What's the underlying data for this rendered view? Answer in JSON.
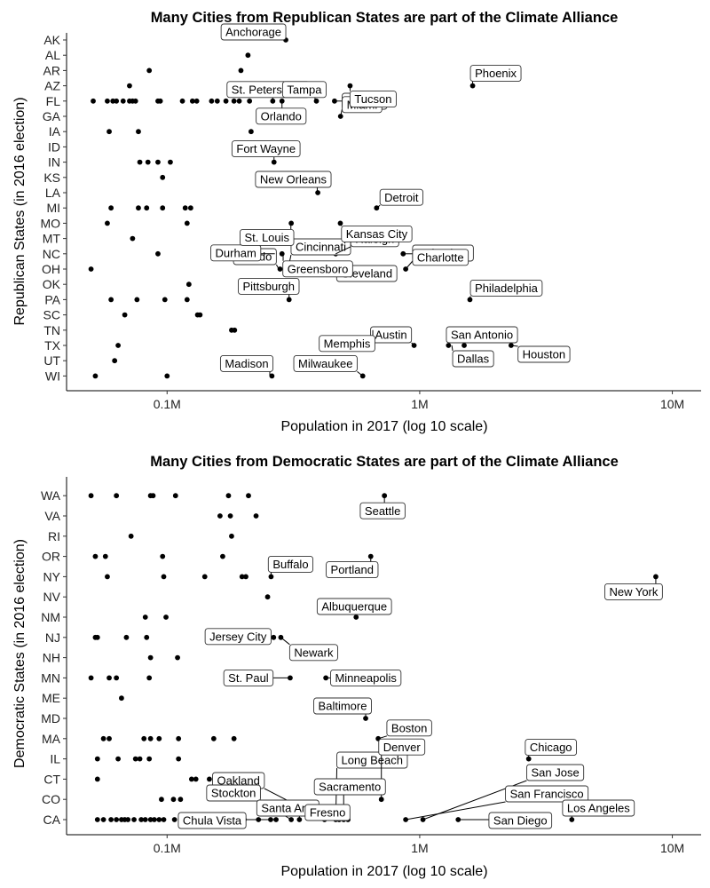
{
  "chart_data": [
    {
      "type": "scatter",
      "title": "Many Cities from Republican States are part of the Climate Alliance",
      "xlabel": "Population in 2017 (log 10 scale)",
      "ylabel": "Republican States (in 2016 election)",
      "x_scale": "log10",
      "x_ticks": [
        {
          "value": 100000,
          "label": "0.1M"
        },
        {
          "value": 1000000,
          "label": "1M"
        },
        {
          "value": 10000000,
          "label": "10M"
        }
      ],
      "grid": false,
      "categories": [
        "AK",
        "AL",
        "AR",
        "AZ",
        "FL",
        "GA",
        "IA",
        "ID",
        "IN",
        "KS",
        "LA",
        "MI",
        "MO",
        "MT",
        "NC",
        "OH",
        "OK",
        "PA",
        "SC",
        "TN",
        "TX",
        "UT",
        "WI"
      ],
      "points": [
        {
          "state": "WI",
          "pops": [
            52000,
            100000,
            260000,
            595000
          ]
        },
        {
          "state": "UT",
          "pops": [
            62000
          ]
        },
        {
          "state": "TX",
          "pops": [
            64000,
            950000,
            1300000,
            1500000,
            2300000
          ]
        },
        {
          "state": "TN",
          "pops": [
            180000,
            185000,
            655000
          ]
        },
        {
          "state": "SC",
          "pops": [
            68000,
            132000,
            135000
          ]
        },
        {
          "state": "PA",
          "pops": [
            60000,
            76000,
            98000,
            120000,
            304000,
            1580000
          ]
        },
        {
          "state": "OK",
          "pops": [
            122000
          ]
        },
        {
          "state": "OH",
          "pops": [
            50000,
            280000,
            300000,
            390000,
            880000
          ]
        },
        {
          "state": "NC",
          "pops": [
            92000,
            235000,
            245000,
            265000,
            285000,
            465000,
            860000
          ]
        },
        {
          "state": "MT",
          "pops": [
            73000
          ]
        },
        {
          "state": "MO",
          "pops": [
            58000,
            120000,
            310000,
            485000
          ]
        },
        {
          "state": "MI",
          "pops": [
            60000,
            77000,
            83000,
            96000,
            118000,
            124000,
            675000
          ]
        },
        {
          "state": "LA",
          "pops": [
            395000
          ]
        },
        {
          "state": "KS",
          "pops": [
            96000
          ]
        },
        {
          "state": "IN",
          "pops": [
            78000,
            84000,
            92000,
            103000,
            265000
          ]
        },
        {
          "state": "ID",
          "pops": []
        },
        {
          "state": "IA",
          "pops": [
            59000,
            77000,
            215000
          ]
        },
        {
          "state": "GA",
          "pops": [
            486000
          ]
        },
        {
          "state": "FL",
          "pops": [
            51000,
            58000,
            61000,
            63000,
            67000,
            71000,
            73000,
            75000,
            92000,
            94000,
            115000,
            126000,
            131000,
            150000,
            158000,
            171000,
            184000,
            193000,
            212000,
            262000,
            285000,
            390000,
            460000
          ]
        },
        {
          "state": "AZ",
          "pops": [
            71000,
            183000,
            530000,
            1620000
          ]
        },
        {
          "state": "AR",
          "pops": [
            85000,
            196000
          ]
        },
        {
          "state": "AL",
          "pops": [
            209000
          ]
        },
        {
          "state": "AK",
          "pops": [
            295000
          ]
        }
      ],
      "labels": [
        {
          "text": "Madison",
          "state": "WI",
          "pop": 255000
        },
        {
          "text": "Milwaukee",
          "state": "WI",
          "pop": 595000
        },
        {
          "text": "Austin",
          "state": "TX",
          "pop": 950000
        },
        {
          "text": "San Antonio",
          "state": "TX",
          "pop": 1500000
        },
        {
          "text": "Houston",
          "state": "TX",
          "pop": 2300000
        },
        {
          "text": "Dallas",
          "state": "TX",
          "pop": 1340000
        },
        {
          "text": "Pittsburgh",
          "state": "PA",
          "pop": 304000
        },
        {
          "text": "Memphis",
          "state": "TN",
          "pop": 652000
        },
        {
          "text": "Philadelphia",
          "state": "PA",
          "pop": 1580000
        },
        {
          "text": "Cincinnati",
          "state": "OH",
          "pop": 301000
        },
        {
          "text": "Toledo",
          "state": "OH",
          "pop": 277000
        },
        {
          "text": "Columbus",
          "state": "OH",
          "pop": 880000
        },
        {
          "text": "Cleveland",
          "state": "OH",
          "pop": 386000
        },
        {
          "text": "Durham",
          "state": "NC",
          "pop": 267000
        },
        {
          "text": "Charlotte",
          "state": "NC",
          "pop": 860000
        },
        {
          "text": "Greensboro",
          "state": "NC",
          "pop": 288000
        },
        {
          "text": "Raleigh",
          "state": "NC",
          "pop": 465000
        },
        {
          "text": "St. Louis",
          "state": "MO",
          "pop": 309000
        },
        {
          "text": "Kansas City",
          "state": "MO",
          "pop": 485000
        },
        {
          "text": "Detroit",
          "state": "MI",
          "pop": 675000
        },
        {
          "text": "New Orleans",
          "state": "LA",
          "pop": 393000
        },
        {
          "text": "Fort Wayne",
          "state": "IN",
          "pop": 265000
        },
        {
          "text": "Atlanta",
          "state": "GA",
          "pop": 486000
        },
        {
          "text": "St. Petersburg",
          "state": "FL",
          "pop": 262000
        },
        {
          "text": "Tampa",
          "state": "FL",
          "pop": 385000
        },
        {
          "text": "Miami",
          "state": "FL",
          "pop": 460000
        },
        {
          "text": "Orlando",
          "state": "FL",
          "pop": 285000
        },
        {
          "text": "Phoenix",
          "state": "AZ",
          "pop": 1620000
        },
        {
          "text": "Tucson",
          "state": "AZ",
          "pop": 530000
        },
        {
          "text": "Anchorage",
          "state": "AK",
          "pop": 294000
        }
      ]
    },
    {
      "type": "scatter",
      "title": "Many Cities from Democratic States are part of the Climate Alliance",
      "xlabel": "Population in 2017 (log 10 scale)",
      "ylabel": "Democratic States (in 2016 election)",
      "x_scale": "log10",
      "x_ticks": [
        {
          "value": 100000,
          "label": "0.1M"
        },
        {
          "value": 1000000,
          "label": "1M"
        },
        {
          "value": 10000000,
          "label": "10M"
        }
      ],
      "grid": false,
      "categories": [
        "CA",
        "CO",
        "CT",
        "IL",
        "MA",
        "MD",
        "ME",
        "MN",
        "NH",
        "NJ",
        "NM",
        "NV",
        "NY",
        "OR",
        "RI",
        "VA",
        "WA"
      ],
      "points": [
        {
          "state": "WA",
          "pops": [
            50000,
            63000,
            86000,
            88000,
            108000,
            175000,
            210000,
            725000
          ]
        },
        {
          "state": "VA",
          "pops": [
            162000,
            178000,
            225000
          ]
        },
        {
          "state": "RI",
          "pops": [
            72000,
            180000
          ]
        },
        {
          "state": "OR",
          "pops": [
            52000,
            57000,
            96000,
            166000,
            640000
          ]
        },
        {
          "state": "NY",
          "pops": [
            58000,
            97000,
            141000,
            198000,
            205000,
            258000,
            8600000
          ]
        },
        {
          "state": "NV",
          "pops": [
            250000
          ]
        },
        {
          "state": "NM",
          "pops": [
            82000,
            99000,
            560000
          ]
        },
        {
          "state": "NJ",
          "pops": [
            52000,
            53000,
            69000,
            83000,
            264000,
            282000
          ]
        },
        {
          "state": "NH",
          "pops": [
            86000,
            110000
          ]
        },
        {
          "state": "MN",
          "pops": [
            50000,
            59000,
            63000,
            85000,
            307000,
            425000
          ]
        },
        {
          "state": "ME",
          "pops": [
            66000
          ]
        },
        {
          "state": "MD",
          "pops": [
            611000
          ]
        },
        {
          "state": "MA",
          "pops": [
            56000,
            59000,
            81000,
            86000,
            93000,
            111000,
            153000,
            184000,
            685000
          ]
        },
        {
          "state": "IL",
          "pops": [
            53000,
            64000,
            75000,
            78000,
            85000,
            111000,
            2700000
          ]
        },
        {
          "state": "CT",
          "pops": [
            53000,
            125000,
            130000,
            147000
          ]
        },
        {
          "state": "CO",
          "pops": [
            95000,
            106000,
            113000,
            705000
          ]
        },
        {
          "state": "CA",
          "pops": [
            53000,
            56000,
            60000,
            63000,
            66000,
            68000,
            70000,
            74000,
            79000,
            82000,
            86000,
            89000,
            93000,
            97000,
            107000,
            117000,
            142000,
            156000,
            172000,
            202000,
            230000,
            257000,
            270000,
            310000,
            334000,
            420000,
            465000,
            480000,
            500000,
            520000,
            880000,
            1030000,
            1420000,
            4000000
          ]
        }
      ],
      "labels": [
        {
          "text": "Seattle",
          "state": "WA",
          "pop": 725000
        },
        {
          "text": "Buffalo",
          "state": "NY",
          "pop": 258000
        },
        {
          "text": "Portland",
          "state": "OR",
          "pop": 640000
        },
        {
          "text": "New York",
          "state": "NY",
          "pop": 8600000
        },
        {
          "text": "Albuquerque",
          "state": "NM",
          "pop": 560000
        },
        {
          "text": "Jersey City",
          "state": "NJ",
          "pop": 264000
        },
        {
          "text": "Newark",
          "state": "NJ",
          "pop": 282000
        },
        {
          "text": "St. Paul",
          "state": "MN",
          "pop": 307000
        },
        {
          "text": "Minneapolis",
          "state": "MN",
          "pop": 425000
        },
        {
          "text": "Baltimore",
          "state": "MD",
          "pop": 611000
        },
        {
          "text": "Boston",
          "state": "MA",
          "pop": 685000
        },
        {
          "text": "Chicago",
          "state": "IL",
          "pop": 2700000
        },
        {
          "text": "Long Beach",
          "state": "CA",
          "pop": 465000
        },
        {
          "text": "Denver",
          "state": "CO",
          "pop": 705000
        },
        {
          "text": "San Jose",
          "state": "CA",
          "pop": 1030000
        },
        {
          "text": "Oakland",
          "state": "CA",
          "pop": 420000
        },
        {
          "text": "Sacramento",
          "state": "CA",
          "pop": 500000
        },
        {
          "text": "Stockton",
          "state": "CA",
          "pop": 310000
        },
        {
          "text": "San Francisco",
          "state": "CA",
          "pop": 880000
        },
        {
          "text": "Santa Ana",
          "state": "CA",
          "pop": 334000
        },
        {
          "text": "Fresno",
          "state": "CA",
          "pop": 520000
        },
        {
          "text": "Los Angeles",
          "state": "CA",
          "pop": 4000000
        },
        {
          "text": "Chula Vista",
          "state": "CA",
          "pop": 270000
        },
        {
          "text": "San Diego",
          "state": "CA",
          "pop": 1420000
        }
      ]
    }
  ]
}
